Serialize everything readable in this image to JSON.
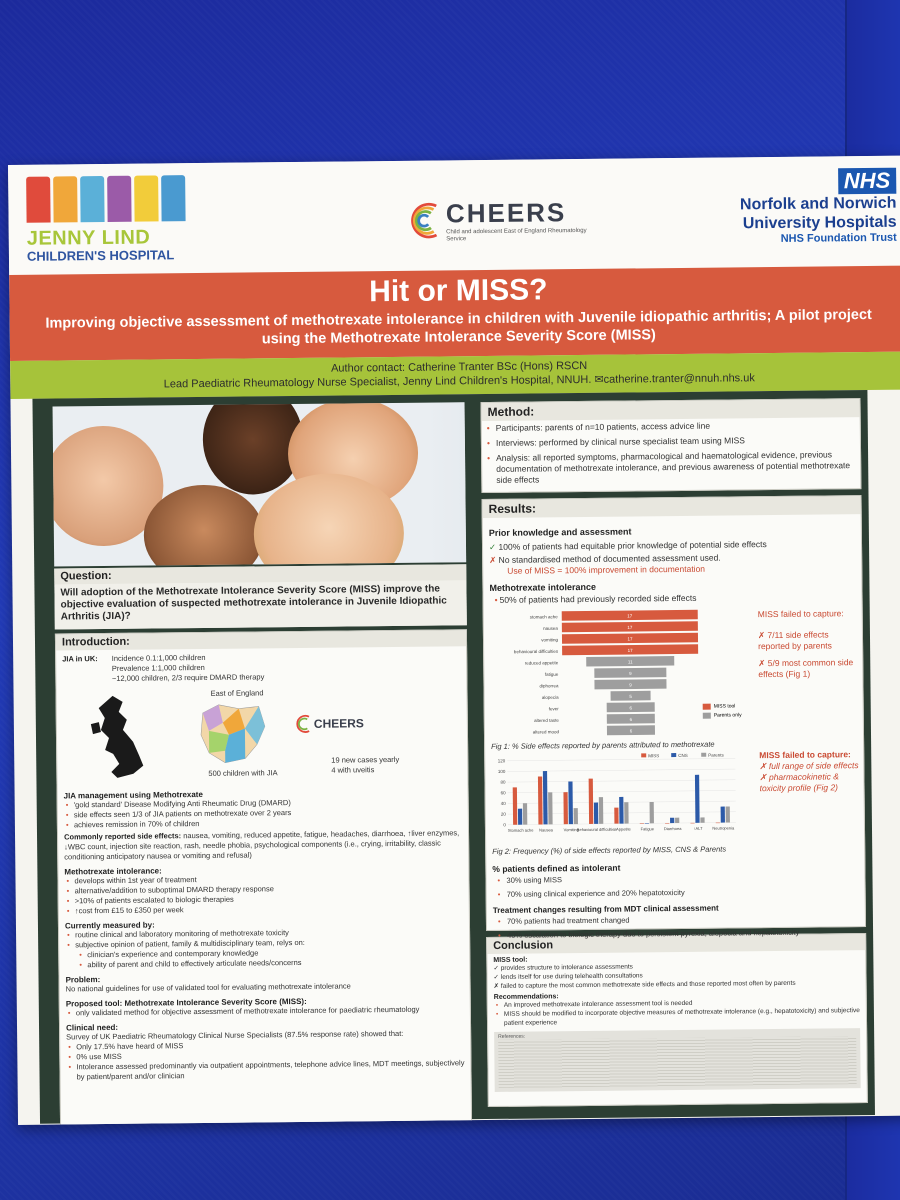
{
  "header": {
    "jenny_lind_name": "JENNY LIND",
    "jenny_lind_sub": "CHILDREN'S HOSPITAL",
    "cheers_name": "CHEERS",
    "cheers_sub": "Child and adolescent East of England Rheumatology Service",
    "nhs_badge": "NHS",
    "nhs_line1": "Norfolk and Norwich",
    "nhs_line2": "University Hospitals",
    "nhs_trust": "NHS Foundation Trust"
  },
  "title": {
    "main": "Hit or MISS?",
    "subtitle": "Improving objective assessment of methotrexate intolerance in children with Juvenile idiopathic arthritis; A pilot project using the Methotrexate Intolerance Severity Score (MISS)"
  },
  "author": {
    "line1": "Author contact: Catherine Tranter BSc (Hons) RSCN",
    "line2": "Lead Paediatric Rheumatology Nurse Specialist, Jenny Lind Children's Hospital, NNUH. ✉catherine.tranter@nnuh.nhs.uk"
  },
  "question": {
    "heading": "Question:",
    "text": "Will adoption of the Methotrexate Intolerance Severity Score (MISS) improve the objective evaluation of suspected methotrexate intolerance in Juvenile Idiopathic Arthritis (JIA)?"
  },
  "intro": {
    "heading": "Introduction:",
    "jia_label": "JIA in UK:",
    "incidence": "Incidence 0.1:1,000 children",
    "prevalence": "Prevalence 1:1,000 children",
    "children": "~12,000 children, 2/3 require DMARD therapy",
    "map_label": "East of England",
    "cheers_label": "CHEERS",
    "children_jia": "500 children with JIA",
    "new_cases": "19 new cases yearly",
    "uveitis": "4 with uveitis",
    "mgmt_heading": "JIA management using Methotrexate",
    "mgmt_items": [
      "'gold standard' Disease Modifying Anti Rheumatic Drug (DMARD)",
      "side effects seen 1/3 of JIA patients on methotrexate over 2 years",
      "achieves remission in 70% of children"
    ],
    "side_effects_label": "Commonly reported side effects:",
    "side_effects_text": "nausea, vomiting, reduced appetite, fatigue, headaches, diarrhoea, ↑liver enzymes, ↓WBC count, injection site reaction, rash, needle phobia, psychological components (i.e., crying, irritability, classic conditioning anticipatory nausea or vomiting and refusal)",
    "intolerance_heading": "Methotrexate intolerance:",
    "intolerance_items": [
      "develops within 1st year of treatment",
      "alternative/addition to suboptimal DMARD therapy response",
      ">10% of patients escalated to biologic therapies",
      "↑cost from £15 to £350 per week"
    ],
    "measured_heading": "Currently measured by:",
    "measured_items": [
      "routine clinical and laboratory monitoring of methotrexate toxicity",
      "subjective opinion of patient, family & multidisciplinary team, relys on:"
    ],
    "measured_sub": [
      "clinician's experience and contemporary knowledge",
      "ability of parent and child to effectively articulate needs/concerns"
    ],
    "problem_heading": "Problem:",
    "problem_text": "No national guidelines for use of validated tool for evaluating methotrexate intolerance",
    "proposed_heading": "Proposed tool: Methotrexate Intolerance Severity Score (MISS):",
    "proposed_items": [
      "only validated method for objective assessment of methotrexate intolerance for paediatric rheumatology"
    ],
    "need_heading": "Clinical need:",
    "need_text": "Survey of UK Paediatric Rheumatology Clinical Nurse Specialists (87.5% response rate) showed that:",
    "need_items": [
      "Only 17.5% have heard of MISS",
      "0% use MISS",
      "Intolerance assessed predominantly via outpatient appointments, telephone advice lines, MDT meetings, subjectively by patient/parent and/or clinician"
    ]
  },
  "method": {
    "heading": "Method:",
    "items": [
      "Participants: parents of n=10 patients, access advice line",
      "Interviews: performed by clinical nurse specialist team using MISS",
      "Analysis: all reported symptoms, pharmacological and haematological evidence, previous documentation of methotrexate intolerance, and previous awareness of potential methotrexate side effects"
    ]
  },
  "results": {
    "heading": "Results:",
    "prior_heading": "Prior knowledge and assessment",
    "prior_tick": "100% of patients had equitable prior knowledge of potential side effects",
    "prior_cross": "No standardised method of documented assessment used.",
    "prior_note": "Use of MISS = 100% improvement in documentation",
    "mtx_heading": "Methotrexate intolerance",
    "mtx_item": "50% of patients had previously recorded side effects",
    "miss_failed_1_title": "MISS failed to capture:",
    "miss_failed_1_items": [
      "7/11 side effects reported by parents",
      "5/9 most common side effects (Fig 1)"
    ],
    "fig1_caption": "Fig 1: % Side effects reported by parents attributed to methotrexate",
    "fig1_legend_miss": "MISS tool",
    "fig1_legend_parents": "Parents only",
    "miss_failed_2_title": "MISS failed to capture:",
    "miss_failed_2_items": [
      "full range of side effects",
      "pharmacokinetic & toxicity profile (Fig 2)"
    ],
    "fig2_caption": "Fig 2: Frequency (%) of side effects reported by MISS, CNS & Parents",
    "intolerant_heading": "% patients defined as intolerant",
    "intolerant_items": [
      "30% using MISS",
      "70% using clinical experience and 20% hepatotoxicity"
    ],
    "treatment_heading": "Treatment changes resulting from MDT clinical assessment",
    "treatment_items": [
      "70% patients had treatment changed",
      "40% escalation to biologic therapy due to persistent pyrexia, alopecia and hepatotoxicity"
    ]
  },
  "conclusion": {
    "heading": "Conclusion",
    "tool_label": "MISS tool:",
    "tool_items": [
      "✓ provides structure to intolerance assessments",
      "✓ lends itself for use during telehealth consultations",
      "✗ failed to capture the most common methotrexate side effects and those reported most often by parents"
    ],
    "rec_label": "Recommendations:",
    "rec_items": [
      "An improved methotrexate intolerance assessment tool is needed",
      "MISS should be modified to incorporate objective measures of methotrexate intolerance (e.g., hepatotoxicity) and subjective patient experience"
    ],
    "references_label": "References:"
  },
  "colors": {
    "title_band": "#d75a3e",
    "author_band": "#a6c33a",
    "frame": "#2c3e33",
    "miss_bar": "#d75a3e",
    "parents_bar": "#9e9e9e",
    "cns_bar": "#2c5aa8"
  },
  "chart_data": [
    {
      "type": "bar",
      "title": "Fig 1: % Side effects reported by parents attributed to methotrexate",
      "categories": [
        "stomach ache",
        "nausea",
        "vomiting",
        "behavioural difficulties",
        "reduced appetite",
        "fatigue",
        "diphorrea",
        "alopecia",
        "fever",
        "altered taste",
        "altered mood"
      ],
      "series": [
        {
          "name": "MISS tool",
          "values": [
            17,
            17,
            17,
            17,
            0,
            0,
            0,
            0,
            0,
            0,
            0
          ]
        },
        {
          "name": "Parents only",
          "values": [
            0,
            0,
            0,
            0,
            11,
            9,
            9,
            5,
            6,
            6,
            6
          ]
        }
      ],
      "legend": "right"
    },
    {
      "type": "bar",
      "title": "Fig 2: Frequency (%) of side effects reported by MISS, CNS & Parents",
      "categories": [
        "Stomach ache",
        "Nausea",
        "Vomiting",
        "Behavioural difficulties",
        "↓ Appetite",
        "Fatigue",
        "Diarrhoea",
        "↑ALT",
        "Neutropenia"
      ],
      "series": [
        {
          "name": "MISS",
          "values": [
            70,
            90,
            60,
            85,
            30,
            0,
            0,
            0,
            0
          ]
        },
        {
          "name": "CNS",
          "values": [
            30,
            100,
            80,
            40,
            50,
            0,
            10,
            90,
            30
          ]
        },
        {
          "name": "Parents",
          "values": [
            40,
            60,
            30,
            50,
            40,
            40,
            10,
            10,
            30
          ]
        }
      ],
      "ylim": [
        0,
        120
      ],
      "yticks": [
        "0",
        "20",
        "40",
        "60",
        "80",
        "100",
        "120"
      ],
      "legend": "top"
    }
  ]
}
